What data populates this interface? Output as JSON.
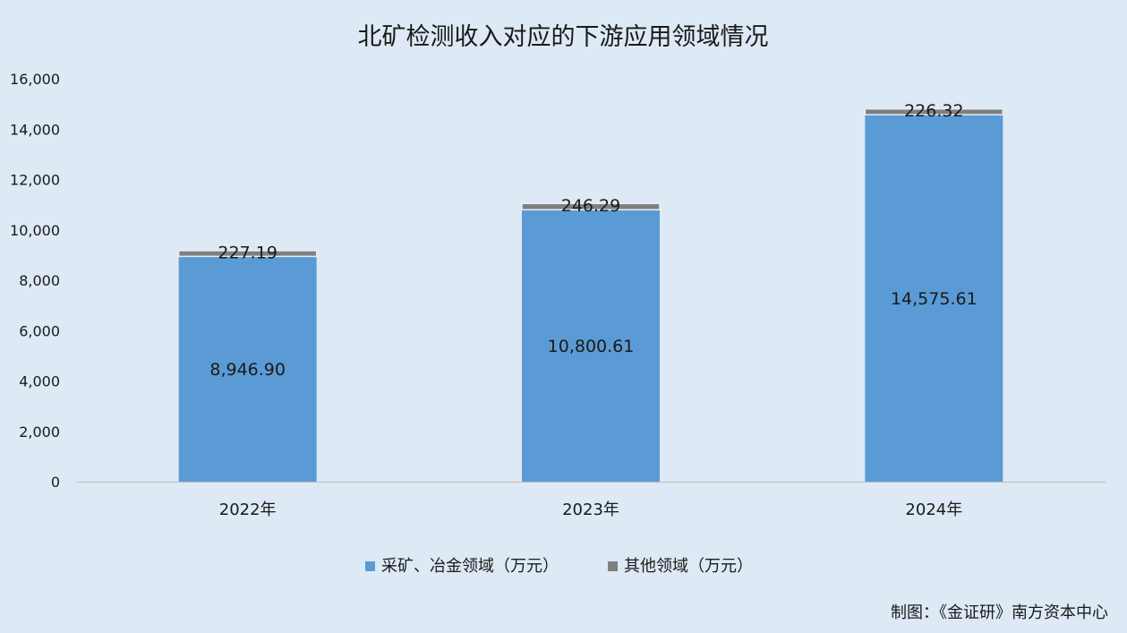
{
  "chart_data": {
    "type": "bar",
    "stacked": true,
    "title": "北矿检测收入对应的下游应用领域情况",
    "categories": [
      "2022年",
      "2023年",
      "2024年"
    ],
    "series": [
      {
        "name": "采矿、冶金领域（万元）",
        "values": [
          8946.9,
          10800.61,
          14575.61
        ],
        "labels": [
          "8,946.90",
          "10,800.61",
          "14,575.61"
        ],
        "color": "#5b9bd5"
      },
      {
        "name": "其他领域（万元）",
        "values": [
          227.19,
          246.29,
          226.32
        ],
        "labels": [
          "227.19",
          "246.29",
          "226.32"
        ],
        "color": "#7f7f7f"
      }
    ],
    "ylim": [
      0,
      16000
    ],
    "yticks": [
      0,
      2000,
      4000,
      6000,
      8000,
      10000,
      12000,
      14000,
      16000
    ],
    "ytick_labels": [
      "0",
      "2,000",
      "4,000",
      "6,000",
      "8,000",
      "10,000",
      "12,000",
      "14,000",
      "16,000"
    ],
    "grid": false,
    "legend_position": "bottom-center",
    "source_note": "制图：《金证研》南方资本中心"
  }
}
